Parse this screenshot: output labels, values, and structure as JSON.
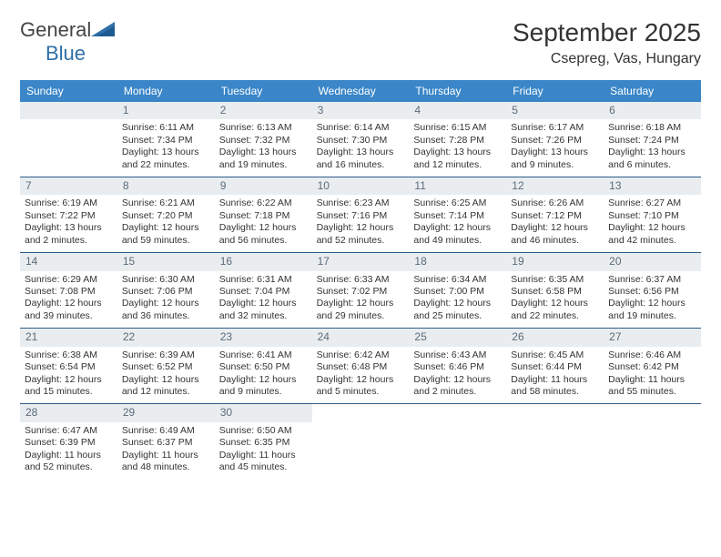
{
  "brand": {
    "text_general": "General",
    "text_blue": "Blue",
    "logo_fill": "#2f6fa8"
  },
  "colors": {
    "header_bg": "#3a86c8",
    "header_text": "#ffffff",
    "daynum_bg": "#e9edf0",
    "daynum_text": "#5c6b78",
    "week_border": "#2c5d89",
    "body_text": "#333333",
    "page_bg": "#ffffff"
  },
  "title": "September 2025",
  "subtitle": "Csepreg, Vas, Hungary",
  "day_names": [
    "Sunday",
    "Monday",
    "Tuesday",
    "Wednesday",
    "Thursday",
    "Friday",
    "Saturday"
  ],
  "weeks": [
    [
      {
        "day": "",
        "lines": []
      },
      {
        "day": "1",
        "lines": [
          "Sunrise: 6:11 AM",
          "Sunset: 7:34 PM",
          "Daylight: 13 hours and 22 minutes."
        ]
      },
      {
        "day": "2",
        "lines": [
          "Sunrise: 6:13 AM",
          "Sunset: 7:32 PM",
          "Daylight: 13 hours and 19 minutes."
        ]
      },
      {
        "day": "3",
        "lines": [
          "Sunrise: 6:14 AM",
          "Sunset: 7:30 PM",
          "Daylight: 13 hours and 16 minutes."
        ]
      },
      {
        "day": "4",
        "lines": [
          "Sunrise: 6:15 AM",
          "Sunset: 7:28 PM",
          "Daylight: 13 hours and 12 minutes."
        ]
      },
      {
        "day": "5",
        "lines": [
          "Sunrise: 6:17 AM",
          "Sunset: 7:26 PM",
          "Daylight: 13 hours and 9 minutes."
        ]
      },
      {
        "day": "6",
        "lines": [
          "Sunrise: 6:18 AM",
          "Sunset: 7:24 PM",
          "Daylight: 13 hours and 6 minutes."
        ]
      }
    ],
    [
      {
        "day": "7",
        "lines": [
          "Sunrise: 6:19 AM",
          "Sunset: 7:22 PM",
          "Daylight: 13 hours and 2 minutes."
        ]
      },
      {
        "day": "8",
        "lines": [
          "Sunrise: 6:21 AM",
          "Sunset: 7:20 PM",
          "Daylight: 12 hours and 59 minutes."
        ]
      },
      {
        "day": "9",
        "lines": [
          "Sunrise: 6:22 AM",
          "Sunset: 7:18 PM",
          "Daylight: 12 hours and 56 minutes."
        ]
      },
      {
        "day": "10",
        "lines": [
          "Sunrise: 6:23 AM",
          "Sunset: 7:16 PM",
          "Daylight: 12 hours and 52 minutes."
        ]
      },
      {
        "day": "11",
        "lines": [
          "Sunrise: 6:25 AM",
          "Sunset: 7:14 PM",
          "Daylight: 12 hours and 49 minutes."
        ]
      },
      {
        "day": "12",
        "lines": [
          "Sunrise: 6:26 AM",
          "Sunset: 7:12 PM",
          "Daylight: 12 hours and 46 minutes."
        ]
      },
      {
        "day": "13",
        "lines": [
          "Sunrise: 6:27 AM",
          "Sunset: 7:10 PM",
          "Daylight: 12 hours and 42 minutes."
        ]
      }
    ],
    [
      {
        "day": "14",
        "lines": [
          "Sunrise: 6:29 AM",
          "Sunset: 7:08 PM",
          "Daylight: 12 hours and 39 minutes."
        ]
      },
      {
        "day": "15",
        "lines": [
          "Sunrise: 6:30 AM",
          "Sunset: 7:06 PM",
          "Daylight: 12 hours and 36 minutes."
        ]
      },
      {
        "day": "16",
        "lines": [
          "Sunrise: 6:31 AM",
          "Sunset: 7:04 PM",
          "Daylight: 12 hours and 32 minutes."
        ]
      },
      {
        "day": "17",
        "lines": [
          "Sunrise: 6:33 AM",
          "Sunset: 7:02 PM",
          "Daylight: 12 hours and 29 minutes."
        ]
      },
      {
        "day": "18",
        "lines": [
          "Sunrise: 6:34 AM",
          "Sunset: 7:00 PM",
          "Daylight: 12 hours and 25 minutes."
        ]
      },
      {
        "day": "19",
        "lines": [
          "Sunrise: 6:35 AM",
          "Sunset: 6:58 PM",
          "Daylight: 12 hours and 22 minutes."
        ]
      },
      {
        "day": "20",
        "lines": [
          "Sunrise: 6:37 AM",
          "Sunset: 6:56 PM",
          "Daylight: 12 hours and 19 minutes."
        ]
      }
    ],
    [
      {
        "day": "21",
        "lines": [
          "Sunrise: 6:38 AM",
          "Sunset: 6:54 PM",
          "Daylight: 12 hours and 15 minutes."
        ]
      },
      {
        "day": "22",
        "lines": [
          "Sunrise: 6:39 AM",
          "Sunset: 6:52 PM",
          "Daylight: 12 hours and 12 minutes."
        ]
      },
      {
        "day": "23",
        "lines": [
          "Sunrise: 6:41 AM",
          "Sunset: 6:50 PM",
          "Daylight: 12 hours and 9 minutes."
        ]
      },
      {
        "day": "24",
        "lines": [
          "Sunrise: 6:42 AM",
          "Sunset: 6:48 PM",
          "Daylight: 12 hours and 5 minutes."
        ]
      },
      {
        "day": "25",
        "lines": [
          "Sunrise: 6:43 AM",
          "Sunset: 6:46 PM",
          "Daylight: 12 hours and 2 minutes."
        ]
      },
      {
        "day": "26",
        "lines": [
          "Sunrise: 6:45 AM",
          "Sunset: 6:44 PM",
          "Daylight: 11 hours and 58 minutes."
        ]
      },
      {
        "day": "27",
        "lines": [
          "Sunrise: 6:46 AM",
          "Sunset: 6:42 PM",
          "Daylight: 11 hours and 55 minutes."
        ]
      }
    ],
    [
      {
        "day": "28",
        "lines": [
          "Sunrise: 6:47 AM",
          "Sunset: 6:39 PM",
          "Daylight: 11 hours and 52 minutes."
        ]
      },
      {
        "day": "29",
        "lines": [
          "Sunrise: 6:49 AM",
          "Sunset: 6:37 PM",
          "Daylight: 11 hours and 48 minutes."
        ]
      },
      {
        "day": "30",
        "lines": [
          "Sunrise: 6:50 AM",
          "Sunset: 6:35 PM",
          "Daylight: 11 hours and 45 minutes."
        ]
      },
      {
        "day": "",
        "lines": []
      },
      {
        "day": "",
        "lines": []
      },
      {
        "day": "",
        "lines": []
      },
      {
        "day": "",
        "lines": []
      }
    ]
  ]
}
